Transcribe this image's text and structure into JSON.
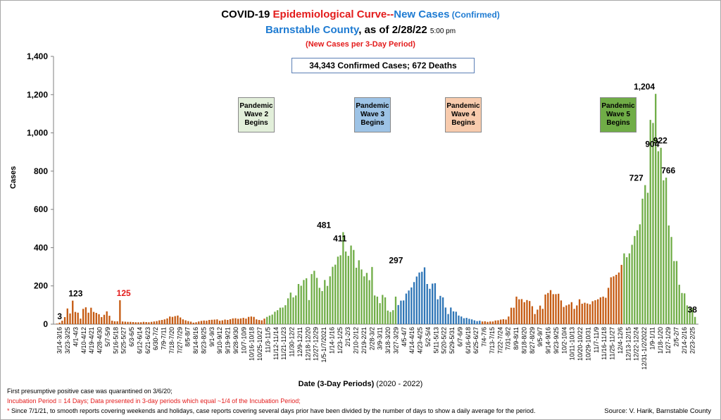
{
  "header": {
    "title_part1": "COVID-19 ",
    "title_part2": "Epidemiological Curve--",
    "title_part3": "New Cases",
    "title_part4": " (Confirmed)",
    "subtitle_part1": "Barnstable County",
    "subtitle_part2": ", as of 2/28/22 ",
    "subtitle_time": "5:00 pm",
    "subtitle2": "(New Cases per 3-Day Period)"
  },
  "summary_box": "34,343 Confirmed Cases; 672 Deaths",
  "waves": [
    {
      "label": "Pandemic Wave 2 Begins",
      "color": "#e2efda",
      "x_category": "10/25-10/27"
    },
    {
      "label": "Pandemic Wave 3 Begins",
      "color": "#9dc3e6",
      "x_category": "3/3-3/5"
    },
    {
      "label": "Pandemic Wave 4 Begins",
      "color": "#f8cbad",
      "x_category": "7/4-7/6"
    },
    {
      "label": "Pandemic Wave 5 Begins",
      "color": "#70ad47",
      "x_category": "11/22-11/24"
    }
  ],
  "footnotes": {
    "line1": "First presumptive positive case was quarantined on 3/6/20;",
    "line2": "Incubation Period = 14 Days; Data presented in 3-day periods which equal ~1/4 of the Incubation Period;",
    "line3_star": "*",
    "line3": " Since 7/1/21, to smooth reports covering weekends and holidays, case reports covering several days prior have been divided by the number of days to show a daily average for the period.",
    "source": "Source: V. Harik, Barnstable County"
  },
  "chart_data": {
    "type": "bar",
    "xlabel": "Date (3-Day Periods)",
    "xlabel_suffix": " (2020 - 2022)",
    "ylabel": "Cases",
    "ylim": [
      0,
      1400
    ],
    "yticks": [
      "0",
      "200",
      "400",
      "600",
      "800",
      "1,000",
      "1,200",
      "1,400"
    ],
    "grid": false,
    "x_tick_labels": [
      "3/14-3/16",
      "3/23-3/25",
      "4/1-4/3",
      "4/10-4/12",
      "4/19-4/21",
      "4/28-4/30",
      "5/7-5/9",
      "5/16-5/18",
      "5/25-5/27",
      "6/3-6/5",
      "6/12-6/14",
      "6/21-6/23",
      "6/30-7/2",
      "7/9-7/11",
      "7/18-7/20",
      "7/27-7/29",
      "8/5-8/7",
      "8/14-8/16",
      "8/23-8/25",
      "9/1-9/3",
      "9/10-9/12",
      "9/19-9/21",
      "9/28-9/30",
      "10/7-10/9",
      "10/16-10/18",
      "10/25-10/27",
      "11/3-11/5",
      "11/12-11/14",
      "11/21-11/23",
      "11/30-12/2",
      "12/9-12/11",
      "12/18-12/20",
      "12/27-12/29",
      "1/5-1/7/2021",
      "1/14-1/16",
      "1/23-1/25",
      "2/1-2/3",
      "2/10-2/12",
      "2/19-2/21",
      "2/28-3/2",
      "3/9-3/11",
      "3/18-3/20",
      "3/27-3/29",
      "4/5-4/7",
      "4/14-4/16",
      "4/23-4/25",
      "5/2-5/4",
      "5/11-5/13",
      "5/20-5/22",
      "5/29-5/31",
      "6/7-6/9",
      "6/16-6/18",
      "6/25-6/27",
      "7/4-7/6",
      "7/13-7/15",
      "7/22-7/24",
      "7/31-8/2",
      "8/9-8/11",
      "8/18-8/20",
      "8/27-8/29",
      "9/5-9/7",
      "9/14-9/16",
      "9/23-9/25",
      "10/2-10/4",
      "10/11-10/13",
      "10/20-10/22",
      "10/29-10/31",
      "11/7-11/9",
      "11/16-11/18",
      "11/25-11/27",
      "12/4-12/6",
      "12/13-12/15",
      "12/22-12/24",
      "12/31-1/2/2022",
      "1/9-1/11",
      "1/18-1/20",
      "1/27-1/29",
      "2/5-2/7",
      "2/14-2/16",
      "2/23-2/25"
    ],
    "series": [
      {
        "color": "#c55a11",
        "values": [
          3,
          8,
          18,
          37,
          82,
          56,
          123,
          64,
          60,
          29,
          80,
          88,
          60,
          86,
          64,
          59,
          52,
          37,
          49,
          67,
          44,
          18,
          15,
          15,
          125,
          14,
          13,
          12,
          12,
          11,
          10,
          10,
          10,
          12,
          11,
          10,
          12,
          14,
          16,
          20,
          22,
          25,
          30,
          40,
          38,
          42,
          45,
          35,
          25,
          20,
          16,
          13,
          8,
          10,
          14,
          17,
          19,
          18,
          22,
          23,
          24,
          25,
          18,
          20,
          24,
          22,
          26,
          30,
          31,
          28,
          30,
          33,
          29,
          38,
          40,
          38,
          25,
          22,
          20,
          29
        ]
      },
      {
        "color": "#70ad47",
        "values": [
          38,
          45,
          50,
          65,
          73,
          86,
          87,
          99,
          135,
          165,
          140,
          150,
          210,
          201,
          231,
          240,
          126,
          262,
          279,
          242,
          190,
          173,
          231,
          200,
          250,
          300,
          311,
          353,
          360,
          481,
          380,
          357,
          411,
          388,
          295,
          334,
          286,
          250,
          268,
          230,
          299,
          150,
          144,
          110,
          153,
          140,
          71,
          64,
          73,
          144
        ]
      },
      {
        "color": "#2e75b6",
        "values": [
          100,
          123,
          124,
          160,
          176,
          192,
          220,
          249,
          270,
          274,
          297,
          210,
          185,
          212,
          214,
          130,
          148,
          140,
          87,
          53,
          87,
          67,
          65,
          45,
          40,
          31,
          33,
          28,
          25,
          20,
          16,
          18
        ]
      },
      {
        "color": "#c55a11",
        "values": [
          14,
          15,
          12,
          14,
          14,
          19,
          20,
          24,
          26,
          24,
          40,
          86,
          86,
          144,
          130,
          131,
          115,
          126,
          121,
          94,
          53,
          76,
          97,
          80,
          155,
          163,
          178,
          157,
          157,
          159,
          124,
          90,
          98,
          103,
          115,
          80,
          98,
          130,
          107,
          112,
          108,
          104,
          120,
          125,
          130,
          140,
          144,
          138
        ]
      },
      {
        "color": "#c55a11",
        "values": [
          190,
          245,
          250,
          258,
          270,
          310
        ]
      },
      {
        "color": "#70ad47",
        "values": [
          370,
          350,
          370,
          415,
          461,
          491,
          522,
          656,
          727,
          687,
          1068,
          1052,
          1204,
          904,
          922,
          752,
          766,
          516,
          456,
          330,
          330,
          206,
          163,
          161,
          98,
          84,
          83,
          38
        ]
      }
    ],
    "labeled_values": [
      {
        "x": "3/14-3/16",
        "y": 3
      },
      {
        "x": "4/1-4/3",
        "y": 123
      },
      {
        "x": "5/25-5/27",
        "y": 125
      },
      {
        "x": "1/5-1/7/2021",
        "y": 481
      },
      {
        "x": "1/23-1/25",
        "y": 411
      },
      {
        "x": "3/27-3/29",
        "y": 297
      },
      {
        "x": "12/31-1/2/2022",
        "y": 1204
      },
      {
        "x": "1/18-1/20",
        "y": 922
      },
      {
        "x": "1/9-1/11",
        "y": 904
      },
      {
        "x": "1/27-1/29",
        "y": 766
      },
      {
        "x": "12/22-12/24",
        "y": 727
      },
      {
        "x": "2/23-2/25",
        "y": 38
      }
    ]
  }
}
